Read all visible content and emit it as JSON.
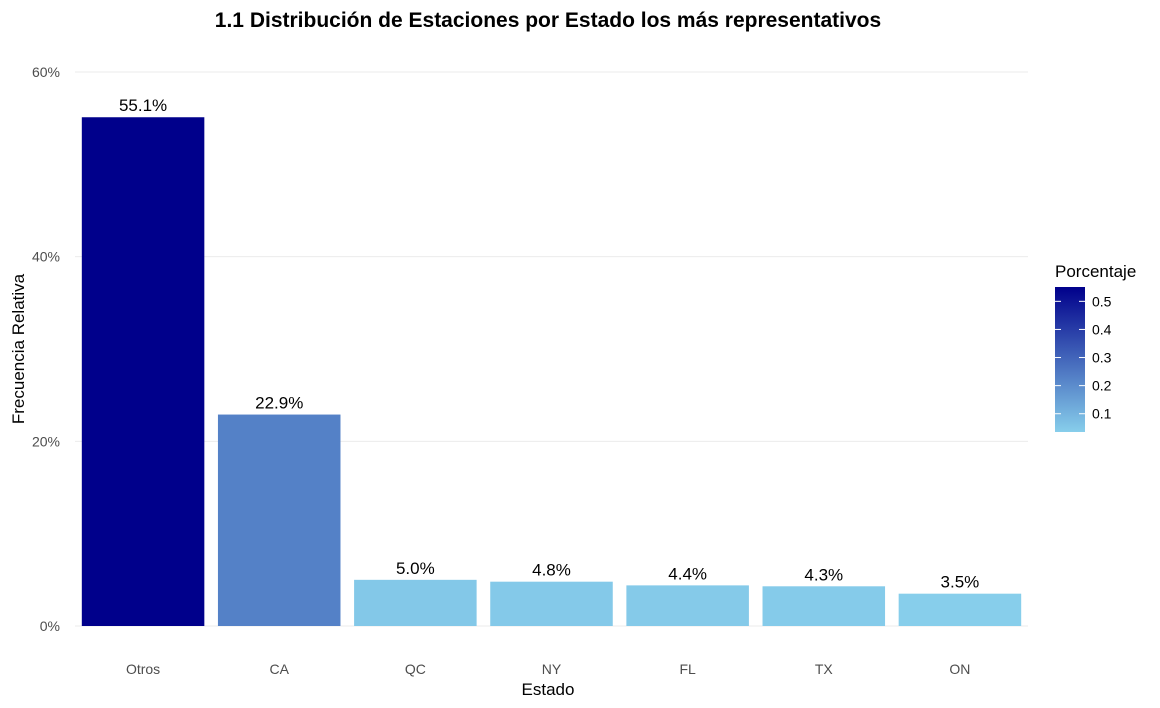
{
  "chart_data": {
    "type": "bar",
    "title": "1.1 Distribución de Estaciones por Estado los más representativos",
    "xlabel": "Estado",
    "ylabel": "Frecuencia Relativa",
    "categories": [
      "Otros",
      "CA",
      "QC",
      "NY",
      "FL",
      "TX",
      "ON"
    ],
    "values": [
      0.551,
      0.229,
      0.05,
      0.048,
      0.044,
      0.043,
      0.035
    ],
    "data_labels": [
      "55.1%",
      "22.9%",
      "5.0%",
      "4.8%",
      "4.4%",
      "4.3%",
      "3.5%"
    ],
    "ylim": [
      0,
      0.6
    ],
    "y_ticks": [
      0,
      0.2,
      0.4,
      0.6
    ],
    "y_tick_labels": [
      "0%",
      "20%",
      "40%",
      "60%"
    ],
    "grid": true,
    "legend": {
      "title": "Porcentaje",
      "placement": "right",
      "ticks": [
        0.1,
        0.2,
        0.3,
        0.4,
        0.5
      ],
      "tick_labels": [
        "0.1",
        "0.2",
        "0.3",
        "0.4",
        "0.5"
      ],
      "range": [
        0.035,
        0.551
      ],
      "color_low": "#87CEEB",
      "color_high": "#00008B"
    }
  }
}
